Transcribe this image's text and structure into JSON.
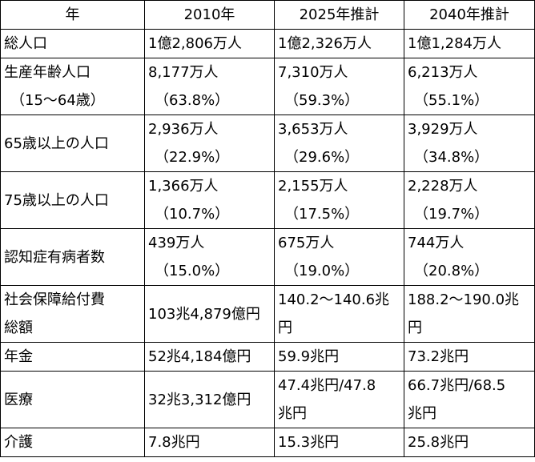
{
  "table": {
    "headers": [
      "年",
      "2010年",
      "2025年推計",
      "2040年推計"
    ],
    "rows": [
      {
        "label": [
          "総人口"
        ],
        "values": [
          [
            "1億2,806万人"
          ],
          [
            "1億2,326万人"
          ],
          [
            "1億1,284万人"
          ]
        ]
      },
      {
        "label": [
          "生産年齢人口",
          "（15〜64歳）"
        ],
        "values": [
          [
            "8,177万人",
            "（63.8%）"
          ],
          [
            "7,310万人",
            "（59.3%）"
          ],
          [
            "6,213万人",
            "（55.1%）"
          ]
        ]
      },
      {
        "label": [
          "65歳以上の人口"
        ],
        "values": [
          [
            "2,936万人",
            "（22.9%）"
          ],
          [
            "3,653万人",
            "（29.6%）"
          ],
          [
            "3,929万人",
            "（34.8%）"
          ]
        ]
      },
      {
        "label": [
          "75歳以上の人口"
        ],
        "values": [
          [
            "1,366万人",
            "（10.7%）"
          ],
          [
            "2,155万人",
            "（17.5%）"
          ],
          [
            "2,228万人",
            "（19.7%）"
          ]
        ]
      },
      {
        "label": [
          "認知症有病者数"
        ],
        "values": [
          [
            "439万人",
            "（15.0%）"
          ],
          [
            "675万人",
            "（19.0%）"
          ],
          [
            "744万人",
            "（20.8%）"
          ]
        ]
      },
      {
        "label": [
          "社会保障給付費",
          "総額"
        ],
        "values": [
          [
            "103兆4,879億円"
          ],
          [
            "140.2〜140.6兆",
            "円"
          ],
          [
            "188.2〜190.0兆",
            "円"
          ]
        ]
      },
      {
        "label": [
          "年金"
        ],
        "values": [
          [
            "52兆4,184億円"
          ],
          [
            "59.9兆円"
          ],
          [
            "73.2兆円"
          ]
        ]
      },
      {
        "label": [
          "医療"
        ],
        "values": [
          [
            "32兆3,312億円"
          ],
          [
            "47.4兆円/47.8",
            "兆円"
          ],
          [
            "66.7兆円/68.5",
            "兆円"
          ]
        ]
      },
      {
        "label": [
          "介護"
        ],
        "values": [
          [
            "7.8兆円"
          ],
          [
            "15.3兆円"
          ],
          [
            "25.8兆円"
          ]
        ]
      }
    ]
  }
}
